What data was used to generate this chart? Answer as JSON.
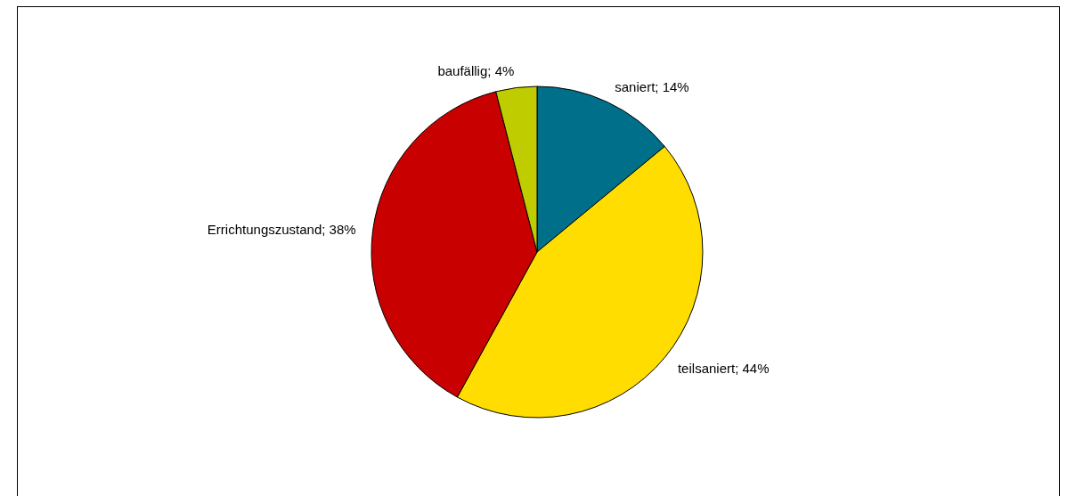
{
  "chart_data": {
    "type": "pie",
    "categories": [
      "saniert",
      "teilsaniert",
      "Errichtungszustand",
      "baufällig"
    ],
    "values": [
      14,
      44,
      38,
      4
    ],
    "colors": [
      "#006f8a",
      "#ffdd00",
      "#c80000",
      "#bfcc00"
    ],
    "value_labels": [
      "; 14%",
      "; 44%",
      "; 38%",
      "; 4%"
    ],
    "legend": false
  }
}
